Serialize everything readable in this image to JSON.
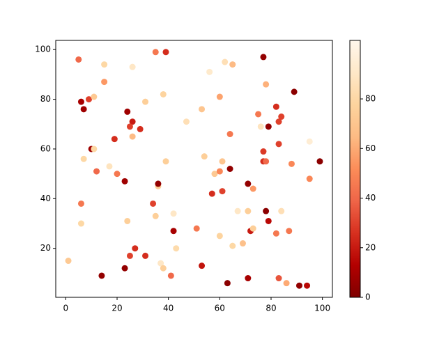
{
  "chart_data": {
    "type": "scatter",
    "x": [
      5,
      15,
      26,
      35,
      39,
      77,
      56,
      62,
      65,
      78,
      15,
      6,
      9,
      11,
      7,
      24,
      31,
      38,
      60,
      89,
      82,
      75,
      84,
      83,
      53,
      47,
      26,
      25,
      29,
      26,
      19,
      76,
      79,
      64,
      83,
      10,
      11,
      7,
      17,
      12,
      20,
      23,
      39,
      54,
      61,
      58,
      60,
      64,
      77,
      77,
      78,
      88,
      99,
      95,
      95,
      36,
      36,
      57,
      61,
      71,
      73,
      6,
      34,
      67,
      71,
      78,
      84,
      6,
      24,
      35,
      42,
      79,
      42,
      51,
      72,
      73,
      87,
      82,
      60,
      69,
      65,
      43,
      27,
      25,
      31,
      1,
      37,
      38,
      23,
      53,
      14,
      41,
      63,
      71,
      83,
      86,
      91,
      94
    ],
    "y": [
      96,
      94,
      93,
      99,
      99,
      97,
      91,
      95,
      94,
      86,
      87,
      79,
      80,
      81,
      76,
      75,
      79,
      82,
      81,
      83,
      77,
      74,
      73,
      71,
      76,
      71,
      71,
      69,
      68,
      65,
      64,
      69,
      69,
      66,
      62,
      60,
      60,
      56,
      53,
      51,
      50,
      47,
      55,
      57,
      55,
      50,
      51,
      52,
      59,
      55,
      55,
      54,
      55,
      63,
      48,
      45,
      46,
      42,
      43,
      46,
      44,
      38,
      38,
      35,
      35,
      35,
      35,
      30,
      31,
      33,
      34,
      31,
      27,
      28,
      27,
      28,
      27,
      26,
      25,
      22,
      21,
      20,
      20,
      17,
      17,
      15,
      14,
      12,
      12,
      13,
      9,
      9,
      6,
      8,
      8,
      6,
      5,
      5
    ],
    "c": [
      40,
      80,
      90,
      45,
      25,
      5,
      92,
      85,
      65,
      62,
      55,
      10,
      30,
      72,
      8,
      8,
      75,
      78,
      58,
      3,
      25,
      45,
      30,
      30,
      70,
      85,
      20,
      30,
      25,
      65,
      25,
      88,
      5,
      45,
      30,
      8,
      80,
      80,
      88,
      40,
      45,
      8,
      75,
      75,
      70,
      72,
      50,
      5,
      28,
      25,
      40,
      50,
      3,
      95,
      50,
      75,
      5,
      25,
      30,
      5,
      55,
      45,
      30,
      90,
      75,
      3,
      85,
      80,
      75,
      75,
      90,
      15,
      10,
      45,
      20,
      75,
      45,
      45,
      78,
      68,
      80,
      82,
      25,
      30,
      25,
      72,
      90,
      75,
      5,
      18,
      5,
      40,
      3,
      10,
      35,
      60,
      5,
      15
    ],
    "clim": [
      0,
      103.6
    ],
    "colormap": [
      "#7f0000",
      "#b30000",
      "#d7301f",
      "#ef6548",
      "#fc8d59",
      "#fdbb84",
      "#fdd49e",
      "#fee8c8",
      "#fff7ec"
    ],
    "xlim": [
      -3.9,
      103.9
    ],
    "ylim": [
      0.3,
      103.7
    ],
    "xticks": [
      0,
      20,
      40,
      60,
      80,
      100
    ],
    "yticks": [
      20,
      40,
      60,
      80,
      100
    ],
    "colorbar_ticks": [
      0,
      20,
      40,
      60,
      80
    ]
  }
}
